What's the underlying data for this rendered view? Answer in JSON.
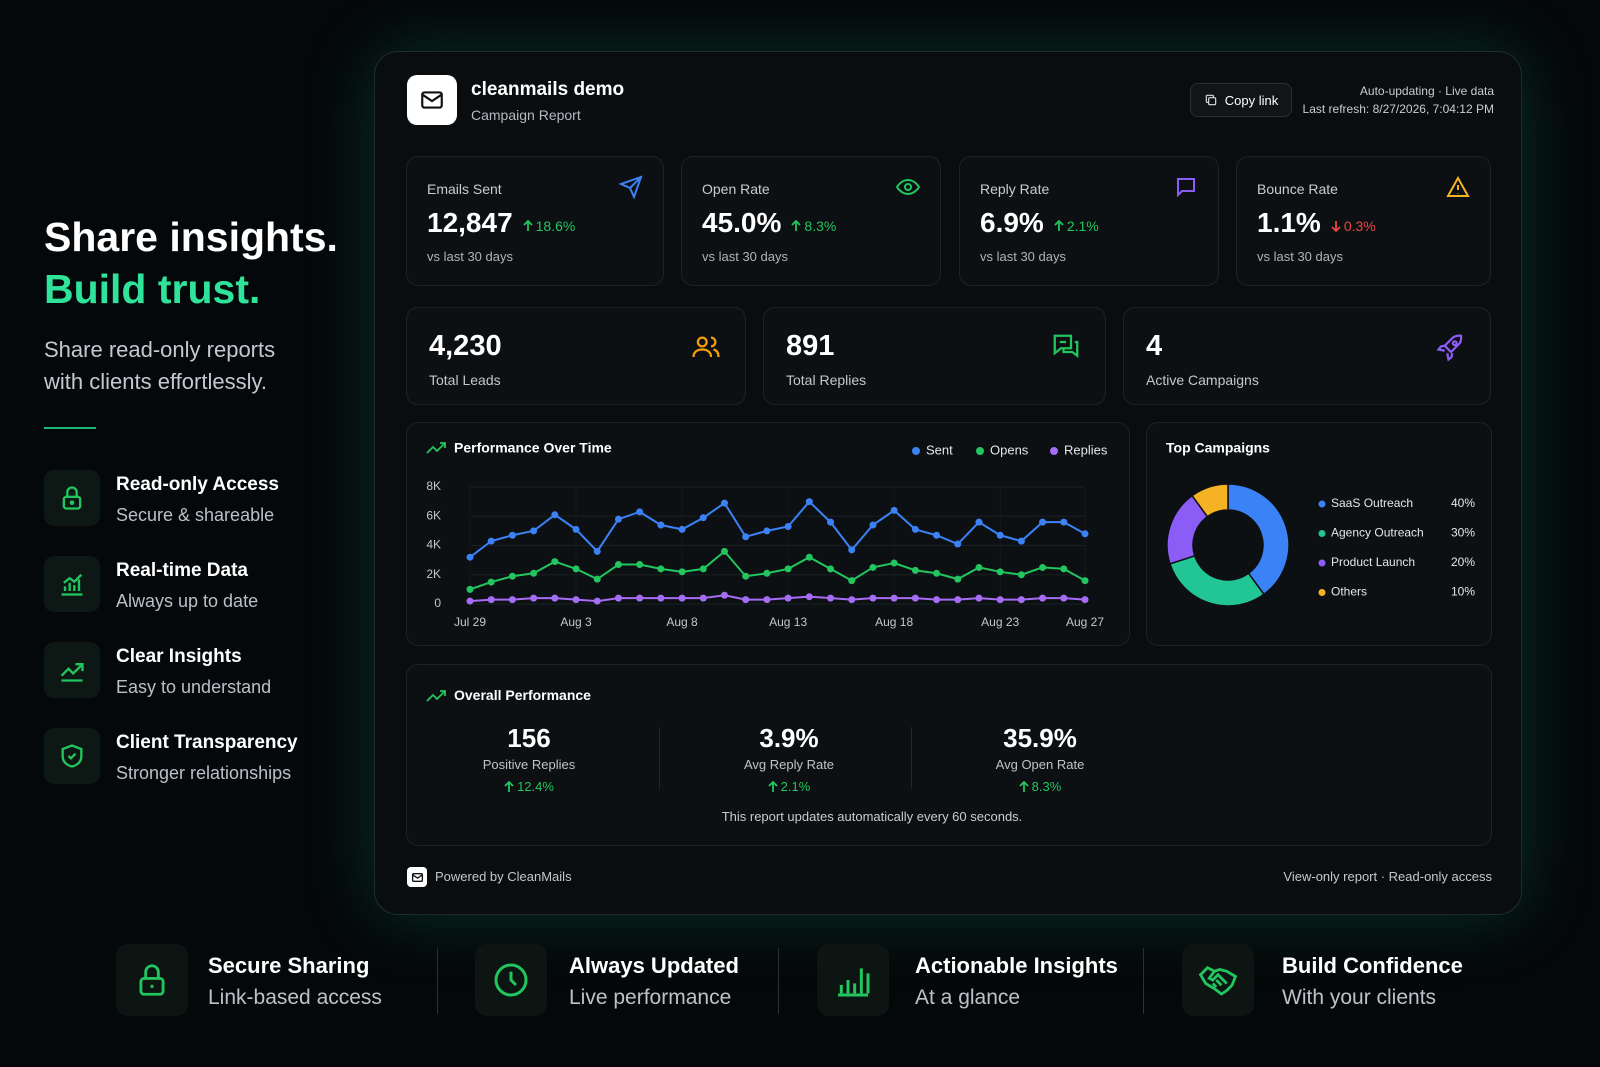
{
  "hero": {
    "title_line1": "Share insights.",
    "title_line2": "Build trust.",
    "subtitle": "Share read-only reports with clients effortlessly."
  },
  "features": [
    {
      "title": "Read-only Access",
      "subtitle": "Secure & shareable"
    },
    {
      "title": "Real-time Data",
      "subtitle": "Always up to date"
    },
    {
      "title": "Clear Insights",
      "subtitle": "Easy to understand"
    },
    {
      "title": "Client Transparency",
      "subtitle": "Stronger relationships"
    }
  ],
  "report": {
    "name": "cleanmails demo",
    "subtitle": "Campaign Report",
    "copy_link": "Copy link",
    "status": "Auto-updating · Live data",
    "last_refresh": "Last refresh: 8/27/2026, 7:04:12 PM"
  },
  "kpis": [
    {
      "label": "Emails Sent",
      "value": "12,847",
      "change": "18.6%",
      "direction": "up",
      "note": "vs last 30 days"
    },
    {
      "label": "Open Rate",
      "value": "45.0%",
      "change": "8.3%",
      "direction": "up",
      "note": "vs last 30 days"
    },
    {
      "label": "Reply Rate",
      "value": "6.9%",
      "change": "2.1%",
      "direction": "up",
      "note": "vs last 30 days"
    },
    {
      "label": "Bounce Rate",
      "value": "1.1%",
      "change": "0.3%",
      "direction": "down",
      "note": "vs last 30 days"
    }
  ],
  "stats": [
    {
      "value": "4,230",
      "label": "Total Leads"
    },
    {
      "value": "891",
      "label": "Total Replies"
    },
    {
      "value": "4",
      "label": "Active Campaigns"
    }
  ],
  "chart_data": [
    {
      "type": "line",
      "title": "Performance Over Time",
      "categories": [
        "Jul 29",
        null,
        null,
        null,
        null,
        "Aug 3",
        null,
        null,
        null,
        null,
        "Aug 8",
        null,
        null,
        null,
        null,
        "Aug 13",
        null,
        null,
        null,
        null,
        "Aug 18",
        null,
        null,
        null,
        null,
        "Aug 23",
        null,
        null,
        null,
        "Aug 27"
      ],
      "series": [
        {
          "name": "Sent",
          "color": "#3b82f6",
          "values": [
            3200,
            4300,
            4700,
            5000,
            6100,
            5100,
            3600,
            5800,
            6300,
            5400,
            5100,
            5900,
            6900,
            4600,
            5000,
            5300,
            7000,
            5600,
            3700,
            5400,
            6400,
            5100,
            4700,
            4100,
            5600,
            4700,
            4300,
            5600,
            5600,
            4800
          ]
        },
        {
          "name": "Opens",
          "color": "#22c55e",
          "values": [
            1000,
            1500,
            1900,
            2100,
            2900,
            2400,
            1700,
            2700,
            2700,
            2400,
            2200,
            2400,
            3600,
            1900,
            2100,
            2400,
            3200,
            2400,
            1600,
            2500,
            2800,
            2300,
            2100,
            1700,
            2500,
            2200,
            2000,
            2500,
            2400,
            1600
          ]
        },
        {
          "name": "Replies",
          "color": "#a66cf5",
          "values": [
            200,
            300,
            300,
            400,
            400,
            300,
            200,
            400,
            400,
            400,
            400,
            400,
            600,
            300,
            300,
            400,
            500,
            400,
            300,
            400,
            400,
            400,
            300,
            300,
            400,
            300,
            300,
            400,
            400,
            300
          ]
        }
      ],
      "ylim": [
        0,
        8000
      ],
      "yticks": [
        0,
        {
          "value": 2000,
          "label": "2K"
        },
        {
          "value": 4000,
          "label": "4K"
        },
        {
          "value": 6000,
          "label": "6K"
        },
        {
          "value": 8000,
          "label": "8K"
        }
      ],
      "grid": true
    },
    {
      "type": "pie",
      "title": "Top Campaigns",
      "categories": [
        "SaaS Outreach",
        "Agency Outreach",
        "Product Launch",
        "Others"
      ],
      "values": [
        40,
        30,
        20,
        10
      ],
      "value_labels": [
        "40%",
        "30%",
        "20%",
        "10%"
      ],
      "colors": [
        "#3b82f6",
        "#22c594",
        "#8b5cf6",
        "#f5b324"
      ]
    }
  ],
  "overall": {
    "title": "Overall Performance",
    "items": [
      {
        "value": "156",
        "label": "Positive Replies",
        "change": "12.4%"
      },
      {
        "value": "3.9%",
        "label": "Avg Reply Rate",
        "change": "2.1%"
      },
      {
        "value": "35.9%",
        "label": "Avg Open Rate",
        "change": "8.3%"
      }
    ],
    "note": "This report updates automatically every 60 seconds."
  },
  "footer": {
    "powered": "Powered by CleanMails",
    "access": "View-only report · Read-only access"
  },
  "benefits": [
    {
      "title": "Secure Sharing",
      "subtitle": "Link-based access"
    },
    {
      "title": "Always Updated",
      "subtitle": "Live performance"
    },
    {
      "title": "Actionable Insights",
      "subtitle": "At a glance"
    },
    {
      "title": "Build Confidence",
      "subtitle": "With your clients"
    }
  ]
}
